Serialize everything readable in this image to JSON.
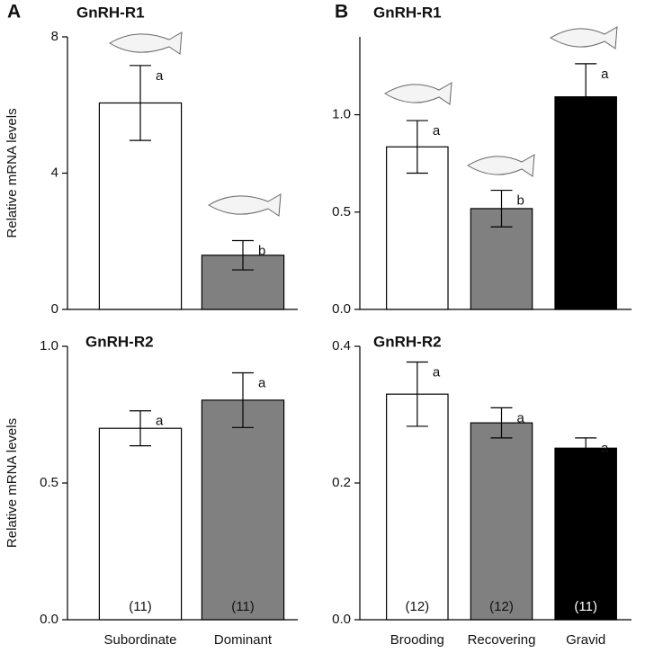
{
  "chart_data": [
    {
      "type": "bar",
      "panel": "A",
      "title": "GnRH-R1",
      "ylabel": "Relative mRNA levels",
      "categories": [
        null,
        null
      ],
      "values": [
        6.06,
        1.59
      ],
      "errors": [
        1.1,
        0.43
      ],
      "colors": [
        "#ffffff",
        "#808080"
      ],
      "sig_labels": [
        "a",
        "b"
      ],
      "ylim": [
        0,
        8
      ],
      "yticks": [
        0,
        4,
        8
      ]
    },
    {
      "type": "bar",
      "panel": "B",
      "title": "GnRH-R1",
      "categories": [
        null,
        null,
        null
      ],
      "values": [
        0.835,
        0.518,
        1.092
      ],
      "errors": [
        0.135,
        0.094,
        0.17
      ],
      "colors": [
        "#ffffff",
        "#808080",
        "#000000"
      ],
      "sig_labels": [
        "a",
        "b",
        "a"
      ],
      "ylim": [
        0,
        1.4
      ],
      "yticks": [
        {
          "value": 0,
          "label": "0.0"
        },
        0.5,
        {
          "value": 1,
          "label": "1.0"
        }
      ]
    },
    {
      "type": "bar",
      "title": "GnRH-R2",
      "ylabel": "Relative mRNA levels",
      "categories": [
        "Subordinate",
        "Dominant"
      ],
      "values": [
        0.7,
        0.803
      ],
      "errors": [
        0.064,
        0.1
      ],
      "colors": [
        "#ffffff",
        "#808080"
      ],
      "sig_labels": [
        "a",
        "a"
      ],
      "sample_sizes": [
        "(11)",
        "(11)"
      ],
      "ylim": [
        0,
        1
      ],
      "yticks": [
        {
          "value": 0,
          "label": "0.0"
        },
        0.5,
        {
          "value": 1,
          "label": "1.0"
        }
      ]
    },
    {
      "type": "bar",
      "title": "GnRH-R2",
      "categories": [
        "Brooding",
        "Recovering",
        "Gravid"
      ],
      "values": [
        0.33,
        0.288,
        0.251
      ],
      "errors": [
        0.047,
        0.022,
        0.015
      ],
      "colors": [
        "#ffffff",
        "#808080",
        "#000000"
      ],
      "sig_labels": [
        "a",
        "a",
        "a"
      ],
      "sample_sizes": [
        "(12)",
        "(12)",
        "(11)"
      ],
      "ylim": [
        0,
        0.4
      ],
      "yticks": [
        {
          "value": 0,
          "label": "0.0"
        },
        0.2,
        0.4
      ]
    }
  ]
}
